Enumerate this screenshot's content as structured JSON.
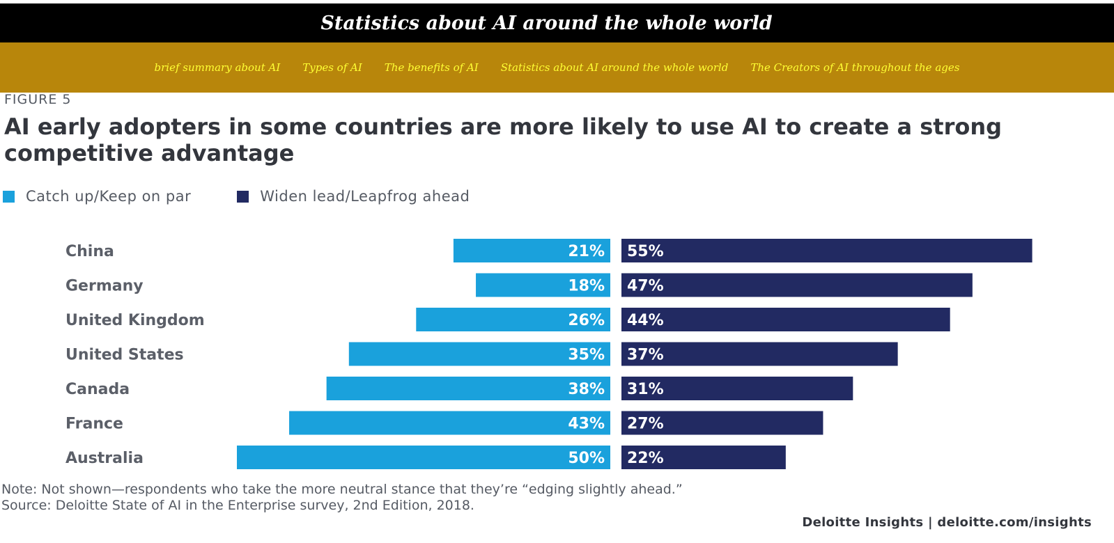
{
  "header": {
    "title": "Statistics about AI around the whole world"
  },
  "nav": {
    "items": [
      {
        "label": "brief summary about AI"
      },
      {
        "label": "Types of AI"
      },
      {
        "label": "The benefits of AI"
      },
      {
        "label": "Statistics about AI around the whole world"
      },
      {
        "label": "The Creators of AI throughout the ages"
      }
    ]
  },
  "figure": {
    "label": "FIGURE 5",
    "note": "Note: Not shown—respondents who take the more neutral stance that they’re “edging slightly ahead.”",
    "source": "Source: Deloitte State of AI in the Enterprise survey, 2nd Edition, 2018.",
    "credit": "Deloitte Insights | deloitte.com/insights"
  },
  "colors": {
    "header_bg": "#000000",
    "nav_bg": "#b8860b",
    "nav_text": "#ffff33",
    "catch_up": "#1aa1dc",
    "widen_lead": "#222a62",
    "category_text": "#5b5f68"
  },
  "chart_data": {
    "type": "bar",
    "title": "AI early adopters in some countries are more likely to use AI to create a strong competitive advantage",
    "categories": [
      "China",
      "Germany",
      "United Kingdom",
      "United States",
      "Canada",
      "France",
      "Australia"
    ],
    "series": [
      {
        "name": "Catch up/Keep on par",
        "values": [
          21,
          18,
          26,
          35,
          38,
          43,
          50
        ],
        "labels": [
          "21%",
          "18%",
          "26%",
          "35%",
          "38%",
          "43%",
          "50%"
        ]
      },
      {
        "name": "Widen lead/Leapfrog ahead",
        "values": [
          55,
          47,
          44,
          37,
          31,
          27,
          22
        ],
        "labels": [
          "55%",
          "47%",
          "44%",
          "37%",
          "31%",
          "27%",
          "22%"
        ]
      }
    ],
    "orientation": "horizontal-diverging",
    "legend_position": "top-left",
    "grid": false,
    "xlabel": "",
    "ylabel": ""
  }
}
